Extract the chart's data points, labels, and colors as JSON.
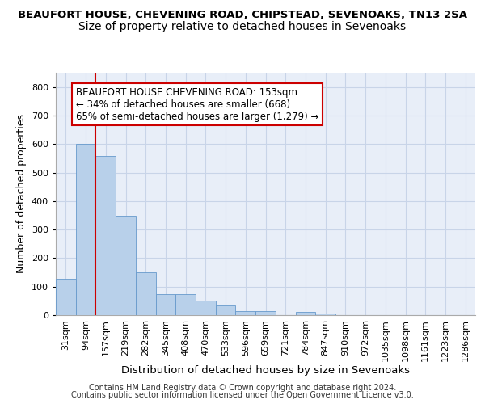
{
  "title1": "BEAUFORT HOUSE, CHEVENING ROAD, CHIPSTEAD, SEVENOAKS, TN13 2SA",
  "title2": "Size of property relative to detached houses in Sevenoaks",
  "xlabel": "Distribution of detached houses by size in Sevenoaks",
  "ylabel": "Number of detached properties",
  "categories": [
    "31sqm",
    "94sqm",
    "157sqm",
    "219sqm",
    "282sqm",
    "345sqm",
    "408sqm",
    "470sqm",
    "533sqm",
    "596sqm",
    "659sqm",
    "721sqm",
    "784sqm",
    "847sqm",
    "910sqm",
    "972sqm",
    "1035sqm",
    "1098sqm",
    "1161sqm",
    "1223sqm",
    "1286sqm"
  ],
  "values": [
    127,
    601,
    558,
    348,
    150,
    75,
    75,
    50,
    35,
    14,
    13,
    0,
    12,
    7,
    0,
    0,
    0,
    0,
    0,
    0,
    0
  ],
  "bar_color": "#b8d0ea",
  "bar_edge_color": "#6699cc",
  "vline_color": "#cc0000",
  "vline_x_index": 2,
  "annotation_text": "BEAUFORT HOUSE CHEVENING ROAD: 153sqm\n← 34% of detached houses are smaller (668)\n65% of semi-detached houses are larger (1,279) →",
  "annotation_box_facecolor": "#ffffff",
  "annotation_box_edgecolor": "#cc0000",
  "footer1": "Contains HM Land Registry data © Crown copyright and database right 2024.",
  "footer2": "Contains public sector information licensed under the Open Government Licence v3.0.",
  "ylim": [
    0,
    850
  ],
  "yticks": [
    0,
    100,
    200,
    300,
    400,
    500,
    600,
    700,
    800
  ],
  "grid_color": "#c8d4e8",
  "bg_color": "#e8eef8",
  "title1_fontsize": 9.5,
  "title2_fontsize": 10,
  "xlabel_fontsize": 9.5,
  "ylabel_fontsize": 9,
  "tick_fontsize": 8,
  "footer_fontsize": 7,
  "annot_fontsize": 8.5
}
